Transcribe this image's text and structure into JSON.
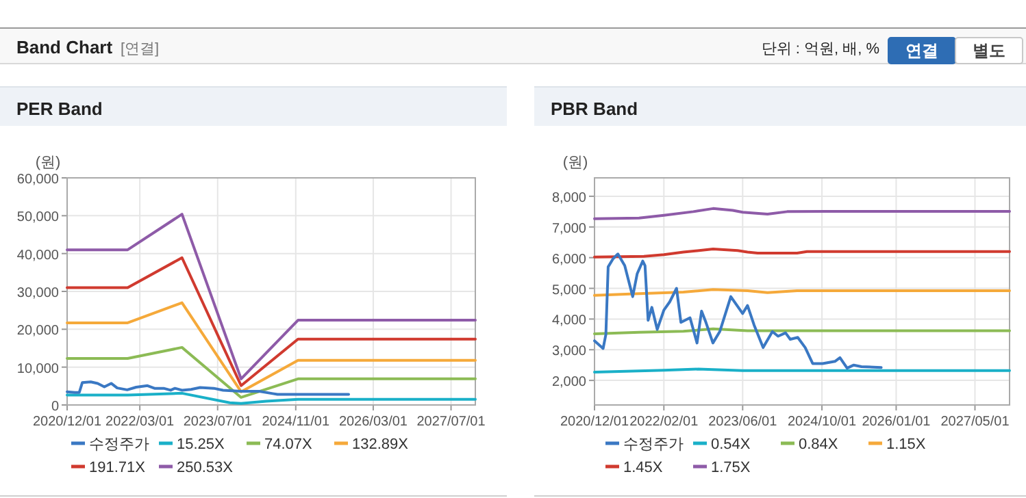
{
  "chart_data": [
    {
      "type": "other",
      "title": "Band Chart",
      "annotations": [
        "[연결]",
        "단위 : 억원, 배, %",
        "연결",
        "별도"
      ]
    },
    {
      "type": "line",
      "title": "PER Band",
      "ylabel": "(원)",
      "grid": true,
      "legend": "bottom",
      "xlim": [
        "2020-12-01",
        "2027-11-30"
      ],
      "xticks": [
        {
          "value": "2020-12-01",
          "label": "2020/12/01"
        },
        {
          "value": "2022-03-01",
          "label": "2022/03/01"
        },
        {
          "value": "2023-07-01",
          "label": "2023/07/01"
        },
        {
          "value": "2024-11-01",
          "label": "2024/11/01"
        },
        {
          "value": "2026-03-01",
          "label": "2026/03/01"
        },
        {
          "value": "2027-07-01",
          "label": "2027/07/01"
        }
      ],
      "ylim": [
        0,
        60000
      ],
      "yticks": [
        0,
        {
          "value": 10000,
          "label": "10,000"
        },
        {
          "value": 20000,
          "label": "20,000"
        },
        {
          "value": 30000,
          "label": "30,000"
        },
        {
          "value": 40000,
          "label": "40,000"
        },
        {
          "value": 50000,
          "label": "50,000"
        },
        {
          "value": 60000,
          "label": "60,000"
        }
      ],
      "series": [
        {
          "name": "수정주가",
          "color": "#3a78c3",
          "x": [
            "2020-12-01",
            "2021-01-18",
            "2021-02-15",
            "2021-03-06",
            "2021-04-28",
            "2021-06-10",
            "2021-07-22",
            "2021-09-03",
            "2021-10-10",
            "2021-12-12",
            "2022-02-06",
            "2022-04-18",
            "2022-06-01",
            "2022-07-28",
            "2022-09-10",
            "2022-10-07",
            "2022-11-20",
            "2023-01-16",
            "2023-03-13",
            "2023-06-07",
            "2023-08-04",
            "2023-11-25",
            "2024-03-18",
            "2024-06-10",
            "2024-07-10",
            "2025-09-28"
          ],
          "values": [
            3500,
            3300,
            3300,
            5900,
            6100,
            5700,
            4800,
            5700,
            4500,
            4000,
            4700,
            5100,
            4400,
            4400,
            3900,
            4400,
            3900,
            4100,
            4600,
            4400,
            3900,
            3600,
            3600,
            3000,
            2800,
            2800
          ]
        },
        {
          "name": "15.25X",
          "color": "#1ab0c8",
          "x": [
            "2020-12-01",
            "2021-12-15",
            "2022-11-20",
            "2023-09-15",
            "2023-11-25",
            "2024-05-01",
            "2024-11-15",
            "2027-11-30"
          ],
          "values": [
            2600,
            2600,
            3100,
            600,
            400,
            1000,
            1500,
            1500
          ]
        },
        {
          "name": "74.07X",
          "color": "#8cbb55",
          "x": [
            "2020-12-01",
            "2021-12-15",
            "2022-11-20",
            "2023-11-25",
            "2024-11-15",
            "2027-11-30"
          ],
          "values": [
            12300,
            12300,
            15200,
            2000,
            6900,
            6900
          ]
        },
        {
          "name": "132.89X",
          "color": "#f5a93a",
          "x": [
            "2020-12-01",
            "2021-12-15",
            "2022-11-20",
            "2023-11-25",
            "2024-11-15",
            "2027-11-30"
          ],
          "values": [
            21700,
            21700,
            27000,
            3500,
            11800,
            11800
          ]
        },
        {
          "name": "191.71X",
          "color": "#d03a2f",
          "x": [
            "2020-12-01",
            "2021-12-15",
            "2022-11-20",
            "2023-11-25",
            "2024-11-15",
            "2027-11-30"
          ],
          "values": [
            31000,
            31000,
            38900,
            5100,
            17400,
            17400
          ]
        },
        {
          "name": "250.53X",
          "color": "#8e5ba8",
          "x": [
            "2020-12-01",
            "2021-12-15",
            "2022-11-20",
            "2023-11-25",
            "2024-11-15",
            "2027-11-30"
          ],
          "values": [
            41000,
            41000,
            50400,
            6900,
            22400,
            22400
          ]
        }
      ]
    },
    {
      "type": "line",
      "title": "PBR Band",
      "ylabel": "(원)",
      "grid": true,
      "legend": "bottom",
      "xlim": [
        "2020-12-01",
        "2027-11-30"
      ],
      "xticks": [
        {
          "value": "2020-12-01",
          "label": "2020/12/01"
        },
        {
          "value": "2022-02-01",
          "label": "2022/02/01"
        },
        {
          "value": "2023-06-01",
          "label": "2023/06/01"
        },
        {
          "value": "2024-10-01",
          "label": "2024/10/01"
        },
        {
          "value": "2026-01-01",
          "label": "2026/01/01"
        },
        {
          "value": "2027-05-01",
          "label": "2027/05/01"
        }
      ],
      "ylim": [
        1200,
        8600
      ],
      "yticks": [
        {
          "value": 2000,
          "label": "2,000"
        },
        {
          "value": 3000,
          "label": "3,000"
        },
        {
          "value": 4000,
          "label": "4,000"
        },
        {
          "value": 5000,
          "label": "5,000"
        },
        {
          "value": 6000,
          "label": "6,000"
        },
        {
          "value": 7000,
          "label": "7,000"
        },
        {
          "value": 8000,
          "label": "8,000"
        }
      ],
      "series": [
        {
          "name": "수정주가",
          "color": "#3a78c3",
          "x": [
            "2020-12-01",
            "2021-01-23",
            "2021-02-09",
            "2021-02-23",
            "2021-03-26",
            "2021-04-24",
            "2021-06-05",
            "2021-07-24",
            "2021-08-21",
            "2021-09-24",
            "2021-10-08",
            "2021-10-27",
            "2021-11-19",
            "2021-12-22",
            "2022-02-01",
            "2022-03-09",
            "2022-04-20",
            "2022-05-17",
            "2022-07-12",
            "2022-08-24",
            "2022-09-21",
            "2022-10-18",
            "2022-11-30",
            "2023-01-11",
            "2023-03-20",
            "2023-06-01",
            "2023-07-01",
            "2023-08-10",
            "2023-10-05",
            "2023-12-01",
            "2024-01-05",
            "2024-02-20",
            "2024-03-20",
            "2024-05-05",
            "2024-06-20",
            "2024-08-05",
            "2024-10-05",
            "2024-12-20",
            "2025-01-20",
            "2025-03-05",
            "2025-04-15",
            "2025-06-01",
            "2025-10-01"
          ],
          "values": [
            3290,
            3040,
            3500,
            5700,
            5970,
            6120,
            5740,
            4730,
            5480,
            5890,
            5740,
            3960,
            4380,
            3660,
            4290,
            4560,
            5000,
            3890,
            4040,
            3220,
            4260,
            3890,
            3220,
            3590,
            4730,
            4180,
            4440,
            3810,
            3070,
            3590,
            3440,
            3550,
            3340,
            3400,
            3070,
            2550,
            2550,
            2620,
            2740,
            2400,
            2500,
            2450,
            2420
          ]
        },
        {
          "name": "0.54X",
          "color": "#1ab0c8",
          "x": [
            "2020-12-01",
            "2022-02-01",
            "2022-09-01",
            "2023-06-01",
            "2027-11-30"
          ],
          "values": [
            2270,
            2330,
            2370,
            2320,
            2320
          ]
        },
        {
          "name": "0.84X",
          "color": "#8cbb55",
          "x": [
            "2020-12-01",
            "2021-09-01",
            "2022-06-01",
            "2022-12-01",
            "2023-07-01",
            "2027-11-30"
          ],
          "values": [
            3520,
            3570,
            3600,
            3680,
            3620,
            3620
          ]
        },
        {
          "name": "1.15X",
          "color": "#f5a93a",
          "x": [
            "2020-12-01",
            "2021-09-01",
            "2022-06-01",
            "2022-12-01",
            "2023-07-01",
            "2023-11-01",
            "2024-05-01",
            "2027-11-30"
          ],
          "values": [
            4770,
            4830,
            4880,
            4960,
            4920,
            4860,
            4920,
            4920
          ]
        },
        {
          "name": "1.45X",
          "color": "#d03a2f",
          "x": [
            "2020-12-01",
            "2021-10-01",
            "2022-02-01",
            "2022-06-01",
            "2022-12-01",
            "2023-05-01",
            "2023-07-01",
            "2023-09-01",
            "2024-05-01",
            "2024-07-01",
            "2027-11-30"
          ],
          "values": [
            6020,
            6040,
            6100,
            6180,
            6280,
            6230,
            6180,
            6150,
            6150,
            6200,
            6200
          ]
        },
        {
          "name": "1.75X",
          "color": "#8e5ba8",
          "x": [
            "2020-12-01",
            "2021-09-01",
            "2022-02-01",
            "2022-08-01",
            "2022-12-01",
            "2023-04-01",
            "2023-06-01",
            "2023-11-01",
            "2024-03-01",
            "2024-11-01",
            "2027-11-30"
          ],
          "values": [
            7270,
            7290,
            7380,
            7500,
            7600,
            7540,
            7480,
            7420,
            7500,
            7510,
            7510
          ]
        }
      ]
    }
  ]
}
